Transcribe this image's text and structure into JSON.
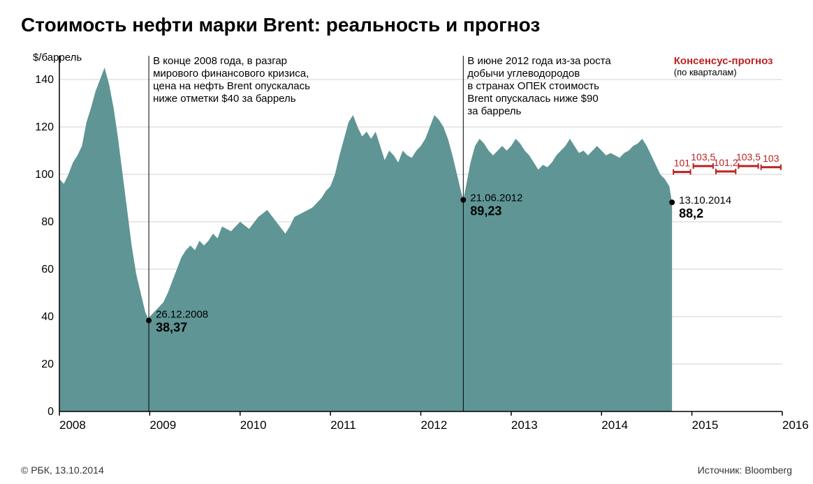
{
  "title": "Стоимость нефти марки Brent: реальность и прогноз",
  "ylabel": "$/баррель",
  "chart": {
    "type": "area",
    "fill_color": "#5f9595",
    "background_color": "#ffffff",
    "grid_color": "#d0d0d0",
    "axis_color": "#000000",
    "text_color": "#000000",
    "forecast_color": "#bb2222",
    "xlim": [
      2008,
      2016
    ],
    "ylim": [
      0,
      150
    ],
    "ytick_step": 20,
    "yticks": [
      0,
      20,
      40,
      60,
      80,
      100,
      120,
      140
    ],
    "xticks": [
      2008,
      2009,
      2010,
      2011,
      2012,
      2013,
      2014,
      2015,
      2016
    ],
    "series_points": [
      [
        2008.0,
        98
      ],
      [
        2008.05,
        96
      ],
      [
        2008.1,
        100
      ],
      [
        2008.15,
        105
      ],
      [
        2008.2,
        108
      ],
      [
        2008.25,
        112
      ],
      [
        2008.3,
        122
      ],
      [
        2008.35,
        128
      ],
      [
        2008.4,
        135
      ],
      [
        2008.45,
        140
      ],
      [
        2008.5,
        145
      ],
      [
        2008.55,
        138
      ],
      [
        2008.6,
        128
      ],
      [
        2008.65,
        115
      ],
      [
        2008.7,
        100
      ],
      [
        2008.75,
        85
      ],
      [
        2008.8,
        70
      ],
      [
        2008.85,
        58
      ],
      [
        2008.9,
        50
      ],
      [
        2008.95,
        42
      ],
      [
        2008.99,
        38.37
      ],
      [
        2009.0,
        40
      ],
      [
        2009.05,
        42
      ],
      [
        2009.1,
        44
      ],
      [
        2009.15,
        46
      ],
      [
        2009.2,
        50
      ],
      [
        2009.25,
        55
      ],
      [
        2009.3,
        60
      ],
      [
        2009.35,
        65
      ],
      [
        2009.4,
        68
      ],
      [
        2009.45,
        70
      ],
      [
        2009.5,
        68
      ],
      [
        2009.55,
        72
      ],
      [
        2009.6,
        70
      ],
      [
        2009.65,
        72
      ],
      [
        2009.7,
        75
      ],
      [
        2009.75,
        73
      ],
      [
        2009.8,
        78
      ],
      [
        2009.85,
        77
      ],
      [
        2009.9,
        76
      ],
      [
        2009.95,
        78
      ],
      [
        2010.0,
        80
      ],
      [
        2010.1,
        77
      ],
      [
        2010.2,
        82
      ],
      [
        2010.3,
        85
      ],
      [
        2010.4,
        80
      ],
      [
        2010.5,
        75
      ],
      [
        2010.55,
        78
      ],
      [
        2010.6,
        82
      ],
      [
        2010.7,
        84
      ],
      [
        2010.8,
        86
      ],
      [
        2010.9,
        90
      ],
      [
        2010.95,
        93
      ],
      [
        2011.0,
        95
      ],
      [
        2011.05,
        100
      ],
      [
        2011.1,
        108
      ],
      [
        2011.15,
        115
      ],
      [
        2011.2,
        122
      ],
      [
        2011.25,
        125
      ],
      [
        2011.3,
        120
      ],
      [
        2011.35,
        116
      ],
      [
        2011.4,
        118
      ],
      [
        2011.45,
        115
      ],
      [
        2011.5,
        118
      ],
      [
        2011.55,
        112
      ],
      [
        2011.6,
        106
      ],
      [
        2011.65,
        110
      ],
      [
        2011.7,
        108
      ],
      [
        2011.75,
        105
      ],
      [
        2011.8,
        110
      ],
      [
        2011.85,
        108
      ],
      [
        2011.9,
        107
      ],
      [
        2011.95,
        110
      ],
      [
        2012.0,
        112
      ],
      [
        2012.05,
        115
      ],
      [
        2012.1,
        120
      ],
      [
        2012.15,
        125
      ],
      [
        2012.2,
        123
      ],
      [
        2012.25,
        120
      ],
      [
        2012.3,
        115
      ],
      [
        2012.35,
        108
      ],
      [
        2012.4,
        100
      ],
      [
        2012.45,
        92
      ],
      [
        2012.47,
        89.23
      ],
      [
        2012.5,
        95
      ],
      [
        2012.55,
        105
      ],
      [
        2012.6,
        112
      ],
      [
        2012.65,
        115
      ],
      [
        2012.7,
        113
      ],
      [
        2012.75,
        110
      ],
      [
        2012.8,
        108
      ],
      [
        2012.85,
        110
      ],
      [
        2012.9,
        112
      ],
      [
        2012.95,
        110
      ],
      [
        2013.0,
        112
      ],
      [
        2013.05,
        115
      ],
      [
        2013.1,
        113
      ],
      [
        2013.15,
        110
      ],
      [
        2013.2,
        108
      ],
      [
        2013.25,
        105
      ],
      [
        2013.3,
        102
      ],
      [
        2013.35,
        104
      ],
      [
        2013.4,
        103
      ],
      [
        2013.45,
        105
      ],
      [
        2013.5,
        108
      ],
      [
        2013.55,
        110
      ],
      [
        2013.6,
        112
      ],
      [
        2013.65,
        115
      ],
      [
        2013.7,
        112
      ],
      [
        2013.75,
        109
      ],
      [
        2013.8,
        110
      ],
      [
        2013.85,
        108
      ],
      [
        2013.9,
        110
      ],
      [
        2013.95,
        112
      ],
      [
        2014.0,
        110
      ],
      [
        2014.05,
        108
      ],
      [
        2014.1,
        109
      ],
      [
        2014.15,
        108
      ],
      [
        2014.2,
        107
      ],
      [
        2014.25,
        109
      ],
      [
        2014.3,
        110
      ],
      [
        2014.35,
        112
      ],
      [
        2014.4,
        113
      ],
      [
        2014.45,
        115
      ],
      [
        2014.5,
        112
      ],
      [
        2014.55,
        108
      ],
      [
        2014.6,
        104
      ],
      [
        2014.65,
        100
      ],
      [
        2014.7,
        98
      ],
      [
        2014.75,
        95
      ],
      [
        2014.78,
        88.2
      ]
    ]
  },
  "annotations": {
    "a2008": {
      "lines": [
        "В конце 2008 года, в разгар",
        "мирового финансового кризиса,",
        "цена на нефть Brent опускалась",
        "ниже отметки $40 за баррель"
      ],
      "date": "26.12.2008",
      "value": "38,37",
      "vline_x": 2008.99,
      "dot_y": 38.37
    },
    "a2012": {
      "lines": [
        "В июне 2012 года из-за роста",
        "добычи углеводородов",
        "в странах ОПЕК стоимость",
        "Brent опускалась ниже $90",
        "за баррель"
      ],
      "date": "21.06.2012",
      "value": "89,23",
      "vline_x": 2012.47,
      "dot_y": 89.23
    },
    "a2014": {
      "date": "13.10.2014",
      "value": "88,2",
      "dot_x": 2014.78,
      "dot_y": 88.2
    }
  },
  "forecast": {
    "label": "Консенсус-прогноз",
    "sublabel": "(по кварталам)",
    "bars": [
      {
        "x0": 2014.78,
        "x1": 2015.0,
        "v": 101,
        "label": "101"
      },
      {
        "x0": 2015.0,
        "x1": 2015.25,
        "v": 103.5,
        "label": "103,5"
      },
      {
        "x0": 2015.25,
        "x1": 2015.5,
        "v": 101.2,
        "label": "101,2"
      },
      {
        "x0": 2015.5,
        "x1": 2015.75,
        "v": 103.5,
        "label": "103,5"
      },
      {
        "x0": 2015.75,
        "x1": 2016.0,
        "v": 103,
        "label": "103"
      }
    ]
  },
  "footer": {
    "left": "© РБК, 13.10.2014",
    "right": "Источник: Bloomberg"
  }
}
